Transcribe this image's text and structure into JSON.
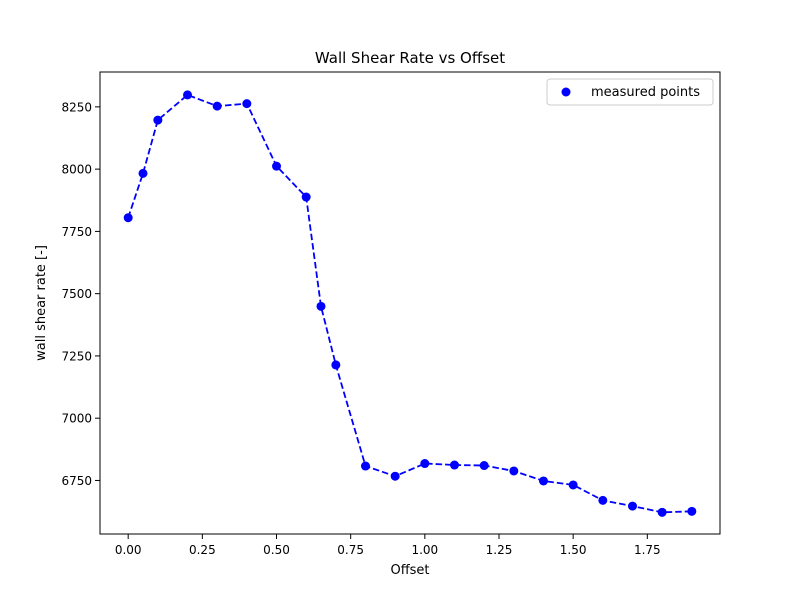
{
  "chart_data": {
    "type": "scatter",
    "title": "Wall Shear Rate vs Offset",
    "xlabel": "Offset",
    "ylabel": "wall shear rate [-]",
    "xlim": [
      -0.095,
      1.995
    ],
    "ylim": [
      6535,
      8390
    ],
    "xticks": [
      0.0,
      0.25,
      0.5,
      0.75,
      1.0,
      1.25,
      1.5,
      1.75
    ],
    "xtick_labels": [
      "0.00",
      "0.25",
      "0.50",
      "0.75",
      "1.00",
      "1.25",
      "1.50",
      "1.75"
    ],
    "yticks": [
      6750,
      7000,
      7250,
      7500,
      7750,
      8000,
      8250
    ],
    "ytick_labels": [
      "6750",
      "7000",
      "7250",
      "7500",
      "7750",
      "8000",
      "8250"
    ],
    "grid": false,
    "legend_position": "top-right",
    "series": [
      {
        "name": "measured points",
        "color": "#0000ff",
        "marker": "circle",
        "line_style": "dashed",
        "x": [
          0.0,
          0.05,
          0.1,
          0.2,
          0.3,
          0.4,
          0.5,
          0.6,
          0.65,
          0.7,
          0.8,
          0.9,
          1.0,
          1.1,
          1.2,
          1.3,
          1.4,
          1.5,
          1.6,
          1.7,
          1.8,
          1.9
        ],
        "y": [
          7805,
          7983,
          8197,
          8298,
          8253,
          8263,
          8012,
          7888,
          7449,
          7214,
          6808,
          6767,
          6818,
          6812,
          6810,
          6788,
          6748,
          6732,
          6670,
          6647,
          6622,
          6626
        ]
      }
    ]
  }
}
